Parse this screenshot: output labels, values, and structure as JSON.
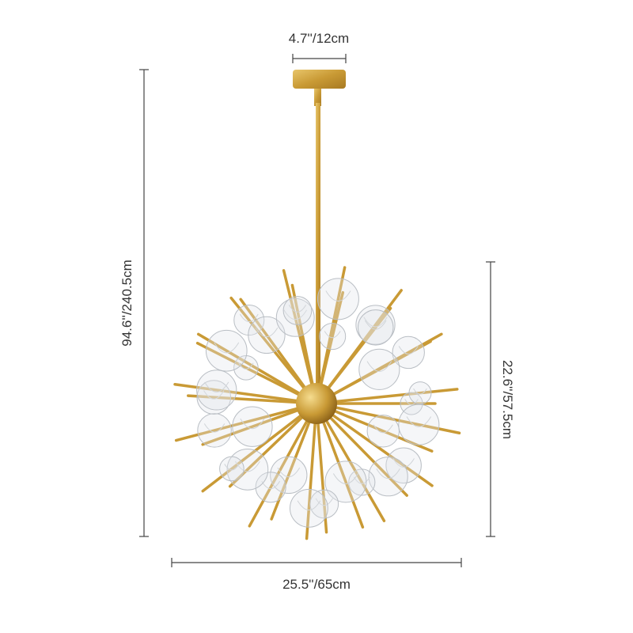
{
  "dimensions": {
    "canopy_width": "4.7''/12cm",
    "overall_height": "94.6''/240.5cm",
    "body_height": "22.6''/57.5cm",
    "body_width": "25.5''/65cm"
  }
}
